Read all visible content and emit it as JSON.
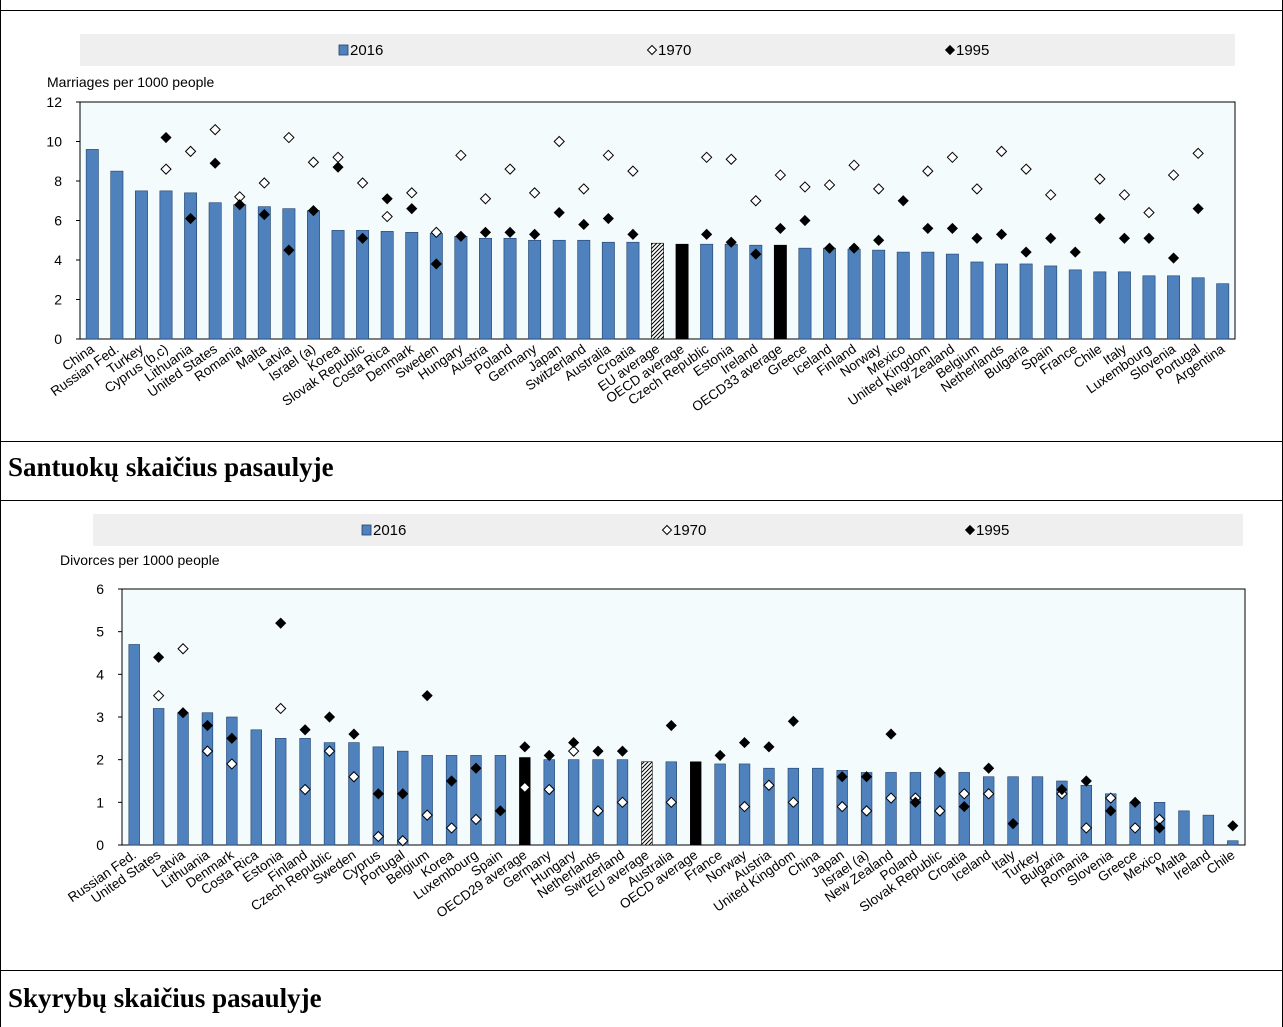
{
  "captions": {
    "marriages": "Santuokų skaičius pasaulyje",
    "divorces": "Skyrybų skaičius pasaulyje"
  },
  "colors": {
    "bar": "#4f81bd",
    "bar_edge": "#1f3f6a",
    "highlight": "#000000",
    "plot_bg": "#f4fbfd",
    "legend_bg": "#efefef"
  },
  "chart_data": [
    {
      "id": "marriages",
      "type": "bar",
      "title": "",
      "ylabel": "Marriages per 1000 people",
      "xlabel": "",
      "ylim": [
        0,
        12
      ],
      "yticks": [
        0,
        2,
        4,
        6,
        8,
        10,
        12
      ],
      "legend": {
        "placement": "top",
        "entries": [
          "2016",
          "1970",
          "1995"
        ]
      },
      "categories": [
        "China",
        "Russian Fed.",
        "Turkey",
        "Cyprus (b,c)",
        "Lithuania",
        "United States",
        "Romania",
        "Malta",
        "Latvia",
        "Israel (a)",
        "Korea",
        "Slovak Republic",
        "Costa Rica",
        "Denmark",
        "Sweden",
        "Hungary",
        "Austria",
        "Poland",
        "Germany",
        "Japan",
        "Switzerland",
        "Australia",
        "Croatia",
        "EU average",
        "OECD average",
        "Czech Republic",
        "Estonia",
        "Ireland",
        "OECD33 average",
        "Greece",
        "Iceland",
        "Finland",
        "Norway",
        "Mexico",
        "United Kingdom",
        "New Zealand",
        "Belgium",
        "Netherlands",
        "Bulgaria",
        "Spain",
        "France",
        "Chile",
        "Italy",
        "Luxembourg",
        "Slovenia",
        "Portugal",
        "Argentina"
      ],
      "bar_style": [
        "normal",
        "normal",
        "normal",
        "normal",
        "normal",
        "normal",
        "normal",
        "normal",
        "normal",
        "normal",
        "normal",
        "normal",
        "normal",
        "normal",
        "normal",
        "normal",
        "normal",
        "normal",
        "normal",
        "normal",
        "normal",
        "normal",
        "normal",
        "hatched",
        "black",
        "normal",
        "normal",
        "normal",
        "black",
        "normal",
        "normal",
        "normal",
        "normal",
        "normal",
        "normal",
        "normal",
        "normal",
        "normal",
        "normal",
        "normal",
        "normal",
        "normal",
        "normal",
        "normal",
        "normal",
        "normal",
        "normal"
      ],
      "series": [
        {
          "name": "2016",
          "marker": "bar",
          "values": [
            9.6,
            8.5,
            7.5,
            7.5,
            7.4,
            6.9,
            6.8,
            6.7,
            6.6,
            6.5,
            5.5,
            5.5,
            5.45,
            5.4,
            5.35,
            5.2,
            5.1,
            5.1,
            5.0,
            5.0,
            5.0,
            4.9,
            4.9,
            4.85,
            4.8,
            4.8,
            4.8,
            4.75,
            4.75,
            4.6,
            4.6,
            4.55,
            4.5,
            4.4,
            4.4,
            4.3,
            3.9,
            3.8,
            3.8,
            3.7,
            3.5,
            3.4,
            3.4,
            3.2,
            3.2,
            3.1,
            2.8
          ]
        },
        {
          "name": "1970",
          "marker": "open-diamond",
          "values": [
            null,
            null,
            null,
            8.6,
            9.5,
            10.6,
            7.2,
            7.9,
            10.2,
            8.95,
            9.2,
            7.9,
            6.2,
            7.4,
            5.4,
            9.3,
            7.1,
            8.6,
            7.4,
            10.0,
            7.6,
            9.3,
            8.5,
            null,
            null,
            9.2,
            9.1,
            7.0,
            8.3,
            7.7,
            7.8,
            8.8,
            7.6,
            null,
            8.5,
            9.2,
            7.6,
            9.5,
            8.6,
            7.3,
            null,
            8.1,
            7.3,
            6.4,
            8.3,
            9.4,
            null
          ]
        },
        {
          "name": "1995",
          "marker": "filled-diamond",
          "values": [
            null,
            null,
            null,
            10.2,
            6.1,
            8.9,
            6.8,
            6.3,
            4.5,
            6.5,
            8.7,
            5.1,
            7.1,
            6.6,
            3.8,
            5.2,
            5.4,
            5.4,
            5.3,
            6.4,
            5.8,
            6.1,
            5.3,
            null,
            null,
            5.3,
            4.9,
            4.3,
            5.6,
            6.0,
            4.6,
            4.6,
            5.0,
            7.0,
            5.6,
            5.6,
            5.1,
            5.3,
            4.4,
            5.1,
            4.4,
            6.1,
            5.1,
            5.1,
            4.1,
            6.6,
            null
          ]
        }
      ]
    },
    {
      "id": "divorces",
      "type": "bar",
      "title": "",
      "ylabel": "Divorces per 1000 people",
      "xlabel": "",
      "ylim": [
        0,
        6
      ],
      "yticks": [
        0,
        1,
        2,
        3,
        4,
        5,
        6
      ],
      "legend": {
        "placement": "top",
        "entries": [
          "2016",
          "1970",
          "1995"
        ]
      },
      "categories": [
        "Russian Fed.",
        "United States",
        "Latvia",
        "Lithuania",
        "Denmark",
        "Costa Rica",
        "Estonia",
        "Finland",
        "Czech Republic",
        "Sweden",
        "Cyprus",
        "Portugal",
        "Belgium",
        "Korea",
        "Luxembourg",
        "Spain",
        "OECD29 average",
        "Germany",
        "Hungary",
        "Netherlands",
        "Switzerland",
        "EU average",
        "Australia",
        "OECD average",
        "France",
        "Norway",
        "Austria",
        "United Kingdom",
        "China",
        "Japan",
        "Israel (a)",
        "New Zealand",
        "Poland",
        "Slovak Republic",
        "Croatia",
        "Iceland",
        "Italy",
        "Turkey",
        "Bulgaria",
        "Romania",
        "Slovenia",
        "Greece",
        "Mexico",
        "Malta",
        "Ireland",
        "Chile"
      ],
      "bar_style": [
        "normal",
        "normal",
        "normal",
        "normal",
        "normal",
        "normal",
        "normal",
        "normal",
        "normal",
        "normal",
        "normal",
        "normal",
        "normal",
        "normal",
        "normal",
        "normal",
        "black",
        "normal",
        "normal",
        "normal",
        "normal",
        "hatched",
        "normal",
        "black",
        "normal",
        "normal",
        "normal",
        "normal",
        "normal",
        "normal",
        "normal",
        "normal",
        "normal",
        "normal",
        "normal",
        "normal",
        "normal",
        "normal",
        "normal",
        "normal",
        "normal",
        "normal",
        "normal",
        "normal",
        "normal",
        "normal"
      ],
      "series": [
        {
          "name": "2016",
          "marker": "bar",
          "values": [
            4.7,
            3.2,
            3.1,
            3.1,
            3.0,
            2.7,
            2.5,
            2.5,
            2.4,
            2.4,
            2.3,
            2.2,
            2.1,
            2.1,
            2.1,
            2.1,
            2.05,
            2.0,
            2.0,
            2.0,
            2.0,
            1.95,
            1.95,
            1.95,
            1.9,
            1.9,
            1.8,
            1.8,
            1.8,
            1.75,
            1.7,
            1.7,
            1.7,
            1.7,
            1.7,
            1.6,
            1.6,
            1.6,
            1.5,
            1.4,
            1.2,
            1.0,
            1.0,
            0.8,
            0.7,
            0.1
          ]
        },
        {
          "name": "1970",
          "marker": "open-diamond",
          "values": [
            null,
            3.5,
            4.6,
            2.2,
            1.9,
            null,
            3.2,
            1.3,
            2.2,
            1.6,
            0.2,
            0.1,
            0.7,
            0.4,
            0.6,
            null,
            1.35,
            1.3,
            2.2,
            0.8,
            1.0,
            null,
            1.0,
            null,
            null,
            0.9,
            1.4,
            1.0,
            null,
            0.9,
            0.8,
            1.1,
            1.1,
            0.8,
            1.2,
            1.2,
            null,
            null,
            1.2,
            0.4,
            1.1,
            0.4,
            0.6,
            null,
            null,
            null
          ]
        },
        {
          "name": "1995",
          "marker": "filled-diamond",
          "values": [
            null,
            4.4,
            3.1,
            2.8,
            2.5,
            null,
            5.2,
            2.7,
            3.0,
            2.6,
            1.2,
            1.2,
            3.5,
            1.5,
            1.8,
            0.8,
            2.3,
            2.1,
            2.4,
            2.2,
            2.2,
            null,
            2.8,
            null,
            2.1,
            2.4,
            2.3,
            2.9,
            null,
            1.6,
            1.6,
            2.6,
            1.0,
            1.7,
            0.9,
            1.8,
            0.5,
            null,
            1.3,
            1.5,
            0.8,
            1.0,
            0.4,
            null,
            null,
            0.45
          ]
        }
      ]
    }
  ]
}
